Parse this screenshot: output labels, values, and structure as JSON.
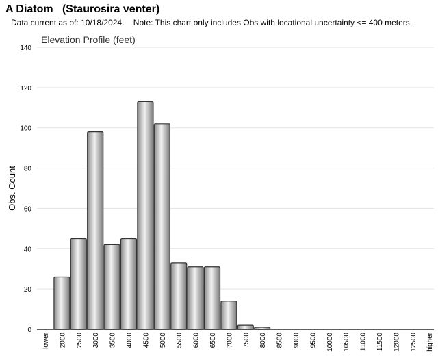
{
  "header": {
    "title": "A Diatom   (Staurosira venter)",
    "note": "Data current as of: 10/18/2024.    Note: This chart only includes Obs with locational uncertainty <= 400 meters."
  },
  "chart_data": {
    "type": "bar",
    "title": "Elevation Profile (feet)",
    "xlabel": "",
    "ylabel": "Obs. Count",
    "ylim": [
      0,
      140
    ],
    "yticks": [
      0,
      20,
      40,
      60,
      80,
      100,
      120,
      140
    ],
    "grid": true,
    "categories": [
      "lower",
      "2000",
      "2500",
      "3000",
      "3500",
      "4000",
      "4500",
      "5000",
      "5500",
      "6000",
      "6500",
      "7000",
      "7500",
      "8000",
      "8500",
      "9000",
      "9500",
      "10000",
      "10500",
      "11000",
      "11500",
      "12000",
      "12500",
      "higher"
    ],
    "values": [
      0,
      26,
      45,
      98,
      42,
      45,
      113,
      102,
      33,
      31,
      31,
      14,
      2,
      1,
      0,
      0,
      0,
      0,
      0,
      0,
      0,
      0,
      0,
      0
    ],
    "colors": {
      "bar_fill_light": "#f2f2f2",
      "bar_fill_dark": "#8a8a8a",
      "bar_stroke": "#333333",
      "grid": "#e3e3e3",
      "axis": "#000000"
    }
  }
}
